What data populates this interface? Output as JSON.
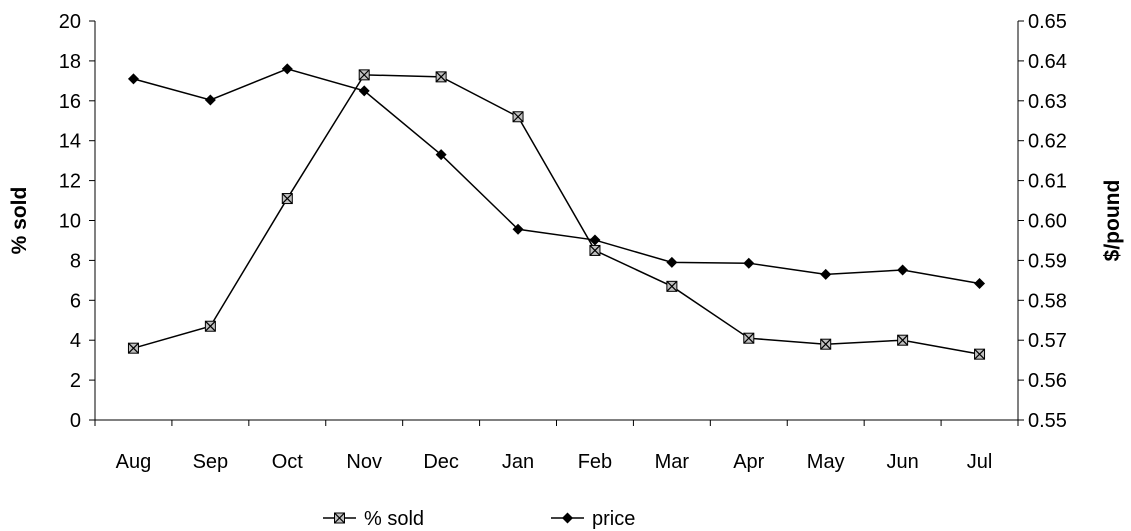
{
  "chart_data": {
    "type": "line",
    "categories": [
      "Aug",
      "Sep",
      "Oct",
      "Nov",
      "Dec",
      "Jan",
      "Feb",
      "Mar",
      "Apr",
      "May",
      "Jun",
      "Jul"
    ],
    "series": [
      {
        "name": "% sold",
        "axis": "left",
        "marker": "square-x",
        "values": [
          3.6,
          4.7,
          11.1,
          17.3,
          17.2,
          15.2,
          8.5,
          6.7,
          4.1,
          3.8,
          4.0,
          3.3
        ]
      },
      {
        "name": "price",
        "axis": "right",
        "marker": "diamond",
        "values": [
          0.6355,
          0.6302,
          0.638,
          0.6325,
          0.6165,
          0.5978,
          0.5951,
          0.5895,
          0.5893,
          0.5865,
          0.5876,
          0.5842
        ]
      }
    ],
    "ylabel": "% sold",
    "y2label": "$/pound",
    "ylim": [
      0,
      20
    ],
    "y2lim": [
      0.55,
      0.65
    ],
    "yticks": [
      "0",
      "2",
      "4",
      "6",
      "8",
      "10",
      "12",
      "14",
      "16",
      "18",
      "20"
    ],
    "y2ticks": [
      "0.55",
      "0.56",
      "0.57",
      "0.58",
      "0.59",
      "0.60",
      "0.61",
      "0.62",
      "0.63",
      "0.64",
      "0.65"
    ],
    "grid": false,
    "legend": "bottom-center",
    "colors": {
      "line": "#000000",
      "marker_fill_square": "#c0c0c0"
    }
  }
}
